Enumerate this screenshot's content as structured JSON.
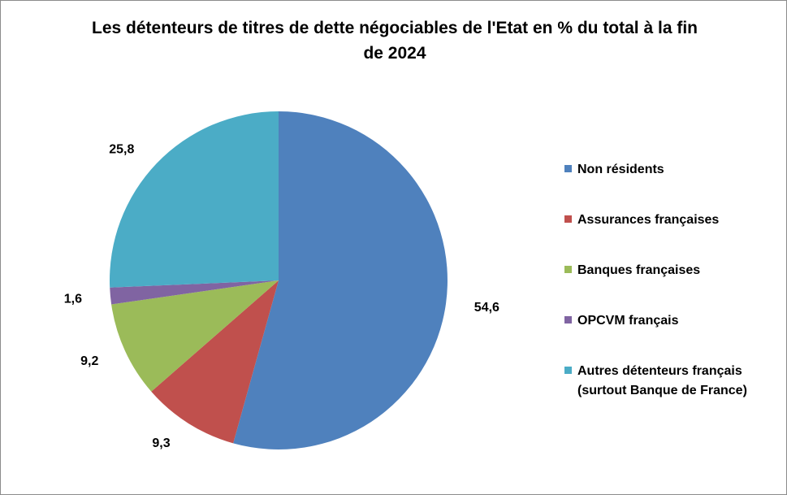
{
  "chart_data": {
    "type": "pie",
    "title": "Les détenteurs de titres de dette négociables de l'Etat en % du total à la fin de 2024",
    "unit": "%",
    "categories": [
      "Non résidents",
      "Assurances françaises",
      "Banques françaises",
      "OPCVM français",
      "Autres détenteurs français (surtout Banque de France)"
    ],
    "values": [
      54.6,
      9.3,
      9.2,
      1.6,
      25.8
    ],
    "value_labels": [
      "54,6",
      "9,3",
      "9,2",
      "1,6",
      "25,8"
    ],
    "colors": [
      "#4f81bd",
      "#c0504d",
      "#9bbb59",
      "#8064a2",
      "#4bacc6"
    ],
    "legend_position": "right",
    "start_angle": "12 o'clock",
    "direction": "clockwise"
  }
}
